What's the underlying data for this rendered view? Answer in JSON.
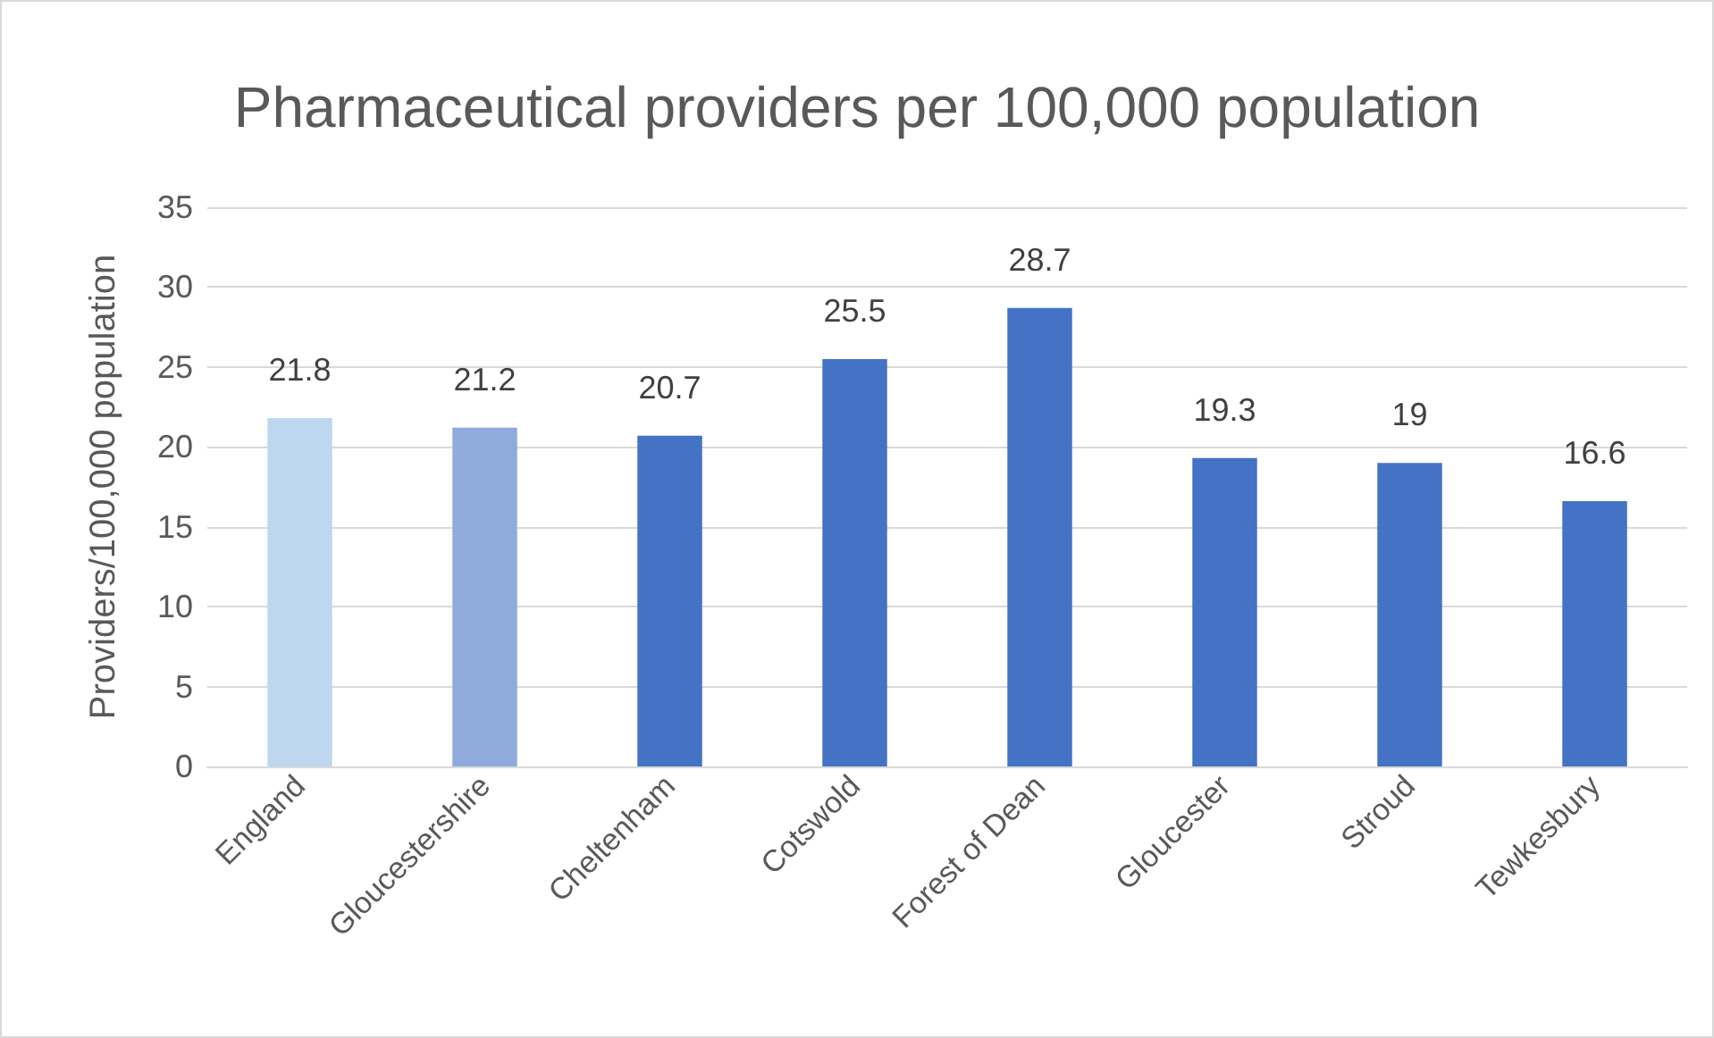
{
  "chart_data": {
    "type": "bar",
    "title": "Pharmaceutical providers per 100,000 population",
    "ylabel": "Providers/100,000 population",
    "categories": [
      "England",
      "Gloucestershire",
      "Cheltenham",
      "Cotswold",
      "Forest of Dean",
      "Gloucester",
      "Stroud",
      "Tewkesbury"
    ],
    "values": [
      21.8,
      21.2,
      20.7,
      25.5,
      28.7,
      19.3,
      19,
      16.6
    ],
    "colors": [
      "#bdd7ee",
      "#8faadc",
      "#4472c4",
      "#4472c4",
      "#4472c4",
      "#4472c4",
      "#4472c4",
      "#4472c4"
    ],
    "ylim": [
      0,
      35
    ],
    "yticks": [
      0,
      5,
      10,
      15,
      20,
      25,
      30,
      35
    ],
    "grid": "y",
    "data_labels": true
  }
}
